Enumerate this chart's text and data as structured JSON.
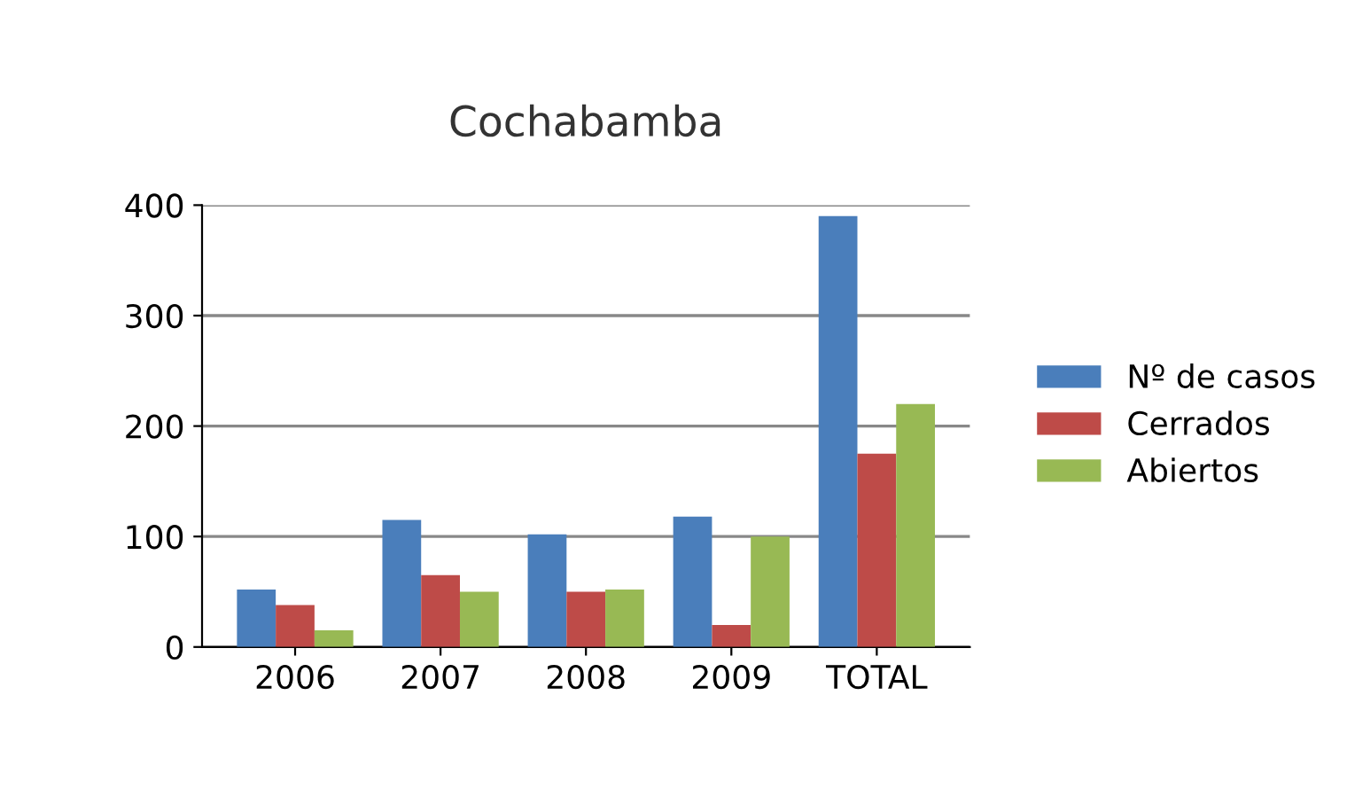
{
  "chart_data": {
    "type": "bar",
    "title": "Cochabamba",
    "categories": [
      "2006",
      "2007",
      "2008",
      "2009",
      "TOTAL"
    ],
    "series": [
      {
        "name": "Nº de casos",
        "color": "#4a7ebb",
        "values": [
          52,
          115,
          102,
          118,
          390
        ]
      },
      {
        "name": "Cerrados",
        "color": "#be4b48",
        "values": [
          38,
          65,
          50,
          20,
          175
        ]
      },
      {
        "name": "Abiertos",
        "color": "#98b954",
        "values": [
          15,
          50,
          52,
          100,
          220
        ]
      }
    ],
    "ylim": [
      0,
      400
    ],
    "yticks": [
      0,
      100,
      200,
      300,
      400
    ],
    "grid": "y",
    "legend": "right"
  }
}
